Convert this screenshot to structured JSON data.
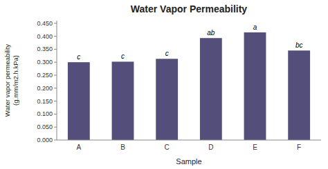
{
  "chart_data": {
    "type": "bar",
    "title": "Water Vapor Permeability",
    "xlabel": "Sample",
    "ylabel": "Water vapor permeability\n(g.mm/m2.h.kPa)",
    "categories": [
      "A",
      "B",
      "C",
      "D",
      "E",
      "F"
    ],
    "values": [
      0.3,
      0.302,
      0.313,
      0.393,
      0.415,
      0.345
    ],
    "annotations": [
      "c",
      "c",
      "c",
      "ab",
      "a",
      "bc"
    ],
    "color": "#534f7a",
    "ylim": [
      0.0,
      0.46
    ],
    "yticks": [
      {
        "value": 0.0,
        "label": "0.000"
      },
      {
        "value": 0.05,
        "label": "0.050"
      },
      {
        "value": 0.1,
        "label": "0.100"
      },
      {
        "value": 0.15,
        "label": "0.150"
      },
      {
        "value": 0.2,
        "label": "0.200"
      },
      {
        "value": 0.25,
        "label": "0.250"
      },
      {
        "value": 0.3,
        "label": "0.300"
      },
      {
        "value": 0.35,
        "label": "0.350"
      },
      {
        "value": 0.4,
        "label": "0.400"
      },
      {
        "value": 0.45,
        "label": "0.450"
      }
    ],
    "grid": false
  }
}
